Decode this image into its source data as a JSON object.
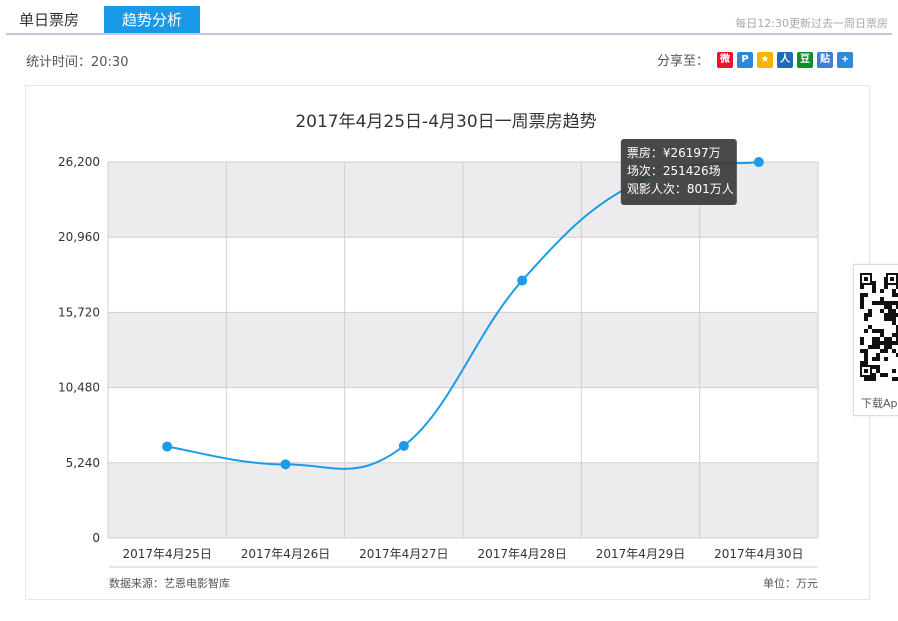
{
  "tabs": [
    {
      "label": "单日票房",
      "active": false
    },
    {
      "label": "趋势分析",
      "active": true
    }
  ],
  "update_note": "每日12:30更新过去一周日票房",
  "stat_time": "统计时间：20:30",
  "share": {
    "label": "分享至：",
    "icons": [
      {
        "name": "weibo-icon",
        "glyph": "微",
        "color": "#e6162d"
      },
      {
        "name": "qzone-icon",
        "glyph": "P",
        "color": "#2b8ad8"
      },
      {
        "name": "star-icon",
        "glyph": "★",
        "color": "#f6b400"
      },
      {
        "name": "renren-icon",
        "glyph": "人",
        "color": "#1e6bb8"
      },
      {
        "name": "douban-icon",
        "glyph": "豆",
        "color": "#0d8f2d"
      },
      {
        "name": "tieba-icon",
        "glyph": "贴",
        "color": "#3c80d6"
      },
      {
        "name": "plus-icon",
        "glyph": "+",
        "color": "#2d8ad8"
      }
    ]
  },
  "chart_data": {
    "type": "line",
    "title": "2017年4月25日-4月30日一周票房趋势",
    "categories": [
      "2017年4月25日",
      "2017年4月26日",
      "2017年4月27日",
      "2017年4月28日",
      "2017年4月29日",
      "2017年4月30日"
    ],
    "series": [
      {
        "values": [
          6370,
          5130,
          6420,
          17940,
          24900,
          26197
        ],
        "color": "#1e9be6"
      }
    ],
    "y_ticks": [
      "0",
      "5,240",
      "10,480",
      "15,720",
      "20,960",
      "26,200"
    ],
    "ylim": [
      0,
      26200
    ],
    "grid": true,
    "band_colors": [
      "#ececee",
      "#ffffff"
    ],
    "source": "数据来源：艺恩电影智库",
    "unit": "单位：万元",
    "tooltip": {
      "lines": [
        "票房：¥26197万",
        "场次：251426场",
        "观影人次：801万人"
      ]
    }
  },
  "qr": {
    "label": "下载App"
  }
}
